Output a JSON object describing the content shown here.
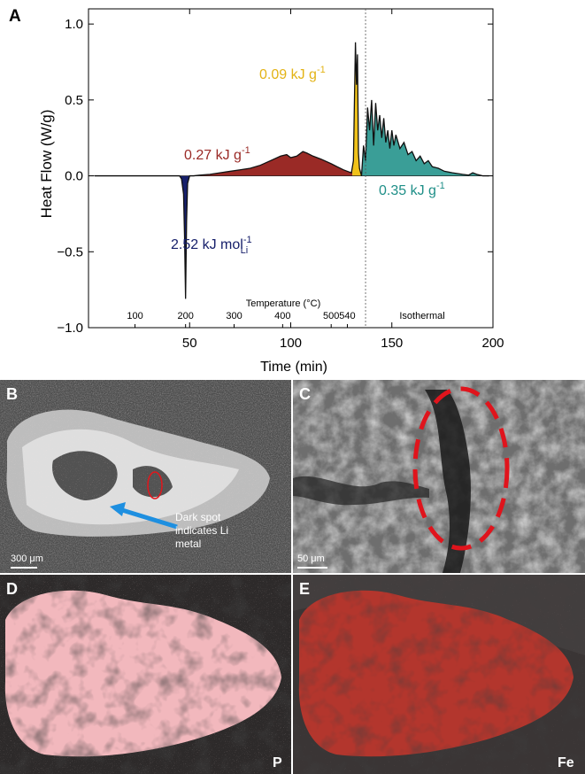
{
  "panel_a": {
    "letter": "A",
    "chart_data": {
      "type": "area",
      "xlabel": "Time (min)",
      "ylabel": "Heat Flow (W/g)",
      "xlim": [
        0,
        200
      ],
      "ylim": [
        -1.0,
        1.1
      ],
      "x_ticks": [
        50,
        100,
        150,
        200
      ],
      "y_ticks": [
        -1.0,
        -0.5,
        0.0,
        0.5,
        1.0
      ],
      "y_tick_labels": [
        "−1.0",
        "−0.5",
        "0.0",
        "0.5",
        "1.0"
      ],
      "grid": false,
      "secondary_axis": {
        "label": "Temperature (°C)",
        "ticks": [
          {
            "time": 23,
            "label": "100"
          },
          {
            "time": 48,
            "label": "200"
          },
          {
            "time": 72,
            "label": "300"
          },
          {
            "time": 96,
            "label": "400"
          },
          {
            "time": 120,
            "label": "500"
          },
          {
            "time": 128,
            "label": "540"
          },
          {
            "time": 165,
            "label": "Isothermal"
          }
        ]
      },
      "isothermal_start_time": 137,
      "series": [
        {
          "x": [
            3,
            45,
            46,
            47,
            47.5,
            48,
            48.5,
            49,
            50,
            52,
            55,
            60,
            65,
            70,
            75,
            80,
            85,
            90,
            95,
            98,
            100,
            103,
            106,
            108,
            111,
            115,
            120,
            123,
            126,
            128,
            130,
            131,
            132,
            132.5,
            133,
            133.5,
            134,
            135,
            136,
            137,
            138,
            139,
            140,
            141,
            142,
            143,
            144,
            145,
            146,
            147,
            148,
            149,
            150,
            151,
            152,
            154,
            156,
            158,
            160,
            162,
            164,
            166,
            168,
            170,
            173,
            176,
            180,
            185,
            188,
            190,
            192,
            195,
            198
          ],
          "y": [
            0,
            0,
            -0.02,
            -0.12,
            -0.4,
            -0.81,
            -0.3,
            -0.05,
            0,
            0,
            0.005,
            0.01,
            0.02,
            0.03,
            0.04,
            0.05,
            0.07,
            0.1,
            0.13,
            0.14,
            0.12,
            0.13,
            0.16,
            0.15,
            0.13,
            0.11,
            0.08,
            0.06,
            0.04,
            0.03,
            0.02,
            0.1,
            0.88,
            0.6,
            0.8,
            0.15,
            0.05,
            0.0,
            0.2,
            0.1,
            0.45,
            0.3,
            0.5,
            0.2,
            0.48,
            0.3,
            0.4,
            0.25,
            0.38,
            0.22,
            0.3,
            0.18,
            0.3,
            0.2,
            0.27,
            0.18,
            0.22,
            0.14,
            0.16,
            0.1,
            0.13,
            0.08,
            0.1,
            0.06,
            0.05,
            0.03,
            0.02,
            0.01,
            0.005,
            0.02,
            0.01,
            0.0,
            0.0
          ]
        }
      ],
      "regions": [
        {
          "label": "2.52 kJ mol",
          "label_sup": "-1",
          "label_sub": "Li",
          "color": "#17206b",
          "x_from": 45,
          "x_to": 50,
          "label_color": "#17206b"
        },
        {
          "label": "0.27 kJ g",
          "label_sup": "-1",
          "label_sub": "",
          "color": "#9a2a26",
          "x_from": 55,
          "x_to": 130.5,
          "label_color": "#9a2a26"
        },
        {
          "label": "0.09 kJ g",
          "label_sup": "-1",
          "label_sub": "",
          "color": "#f0c21a",
          "x_from": 130.5,
          "x_to": 135,
          "label_color": "#e3b316"
        },
        {
          "label": "0.35 kJ g",
          "label_sup": "-1",
          "label_sub": "",
          "color": "#3a9e97",
          "x_from": 135,
          "x_to": 198,
          "label_color": "#1f8f88"
        }
      ]
    }
  },
  "panel_b": {
    "letter": "B",
    "annotation_line1": "Dark spot",
    "annotation_line2": "indicates Li",
    "annotation_line3": "metal",
    "scale_bar": "300 μm"
  },
  "panel_c": {
    "letter": "C",
    "scale_bar": "50 μm"
  },
  "panel_d": {
    "letter": "D",
    "element": "P"
  },
  "panel_e": {
    "letter": "E",
    "element": "Fe"
  }
}
